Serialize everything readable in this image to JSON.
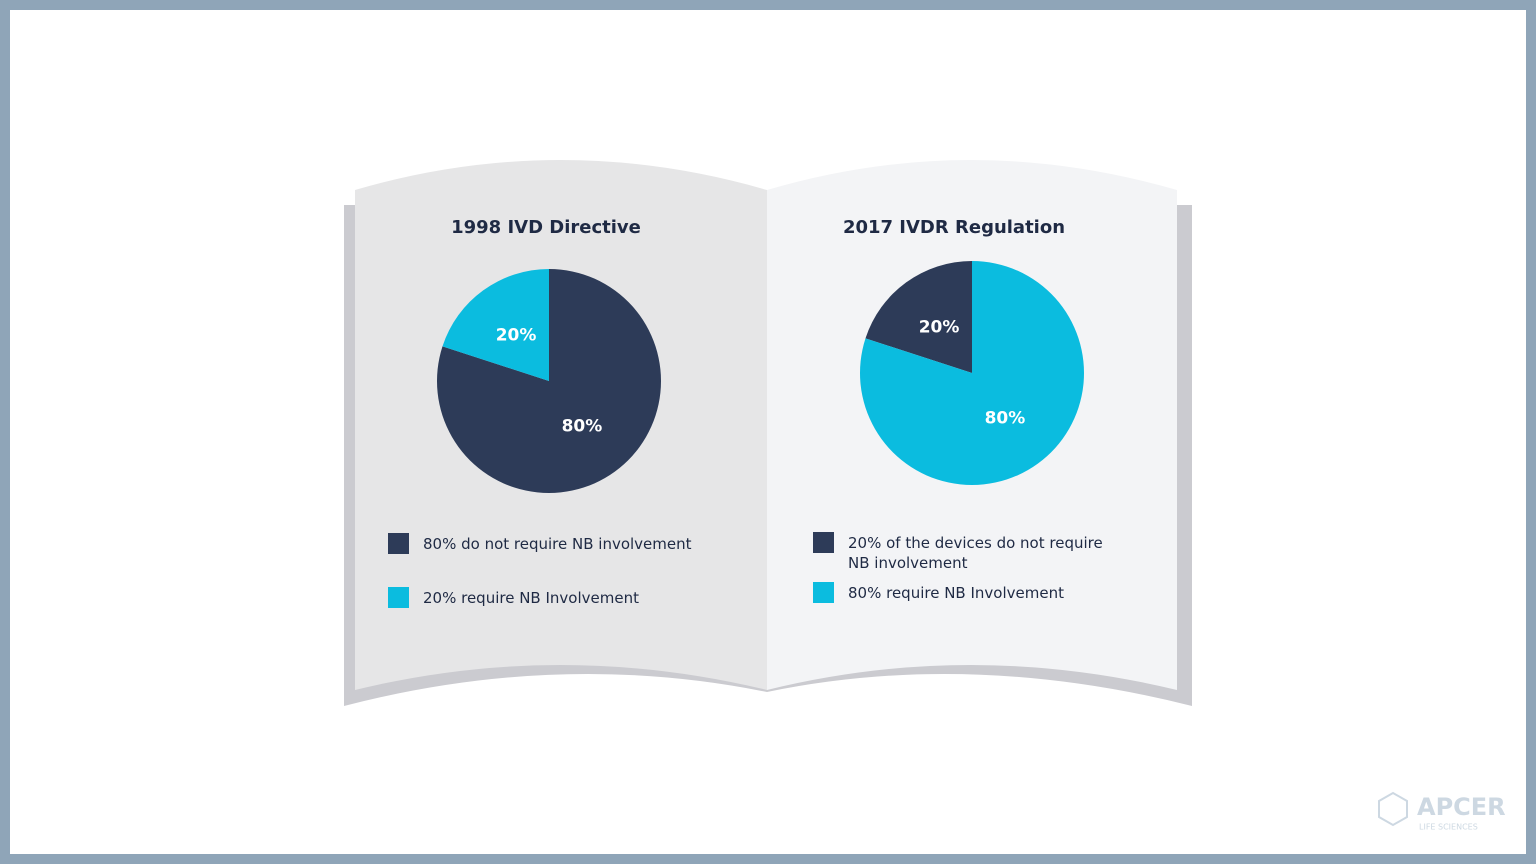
{
  "chart_data": [
    {
      "type": "pie",
      "title": "1998 IVD Directive",
      "categories": [
        "80% do not require NB involvement",
        "20% require NB Involvement"
      ],
      "values": [
        80,
        20
      ],
      "value_labels": [
        "80%",
        "20%"
      ],
      "colors": [
        "#2d3b58",
        "#0bbcdf"
      ],
      "counterclock": false
    },
    {
      "type": "pie",
      "title": "2017 IVDR Regulation",
      "categories": [
        "20% of the devices do not require NB involvement",
        "80% require NB Involvement"
      ],
      "values": [
        20,
        80
      ],
      "value_labels": [
        "20%",
        "80%"
      ],
      "colors": [
        "#2d3b58",
        "#0bbcdf"
      ],
      "counterclock": true
    }
  ],
  "logo": {
    "name": "APCER",
    "tagline": "LIFE SCIENCES"
  }
}
